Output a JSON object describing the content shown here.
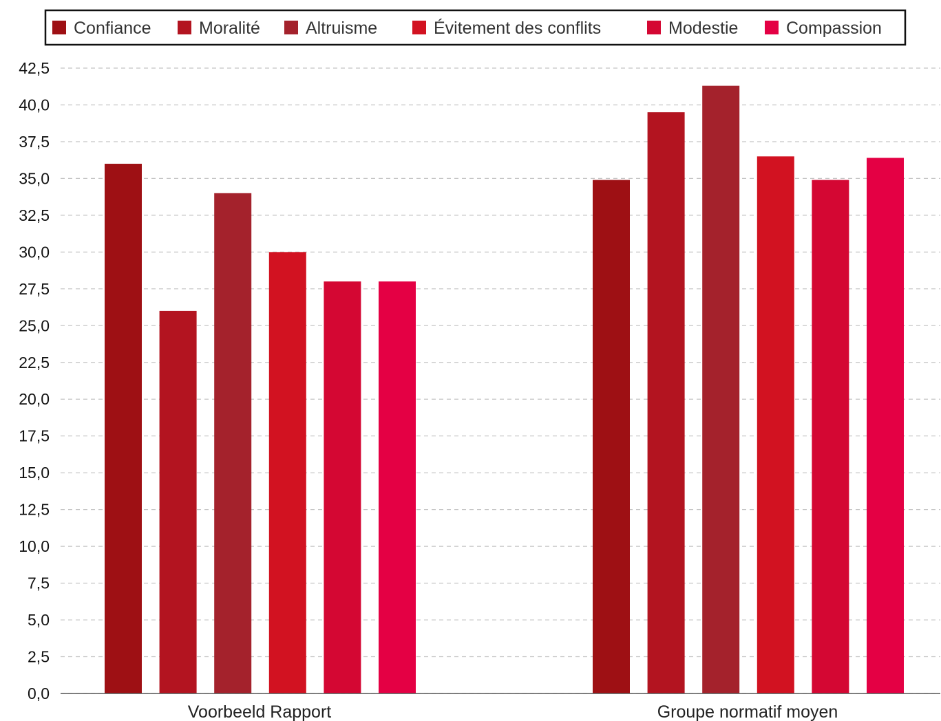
{
  "chart_data": {
    "type": "bar",
    "categories": [
      "Voorbeeld Rapport",
      "Groupe normatif moyen"
    ],
    "series": [
      {
        "name": "Confiance",
        "color": "#9e1014",
        "values": [
          36.0,
          34.9
        ]
      },
      {
        "name": "Moralité",
        "color": "#b31420",
        "values": [
          26.0,
          39.5
        ]
      },
      {
        "name": "Altruisme",
        "color": "#a4222c",
        "values": [
          34.0,
          41.3
        ]
      },
      {
        "name": "Évitement des conflits",
        "color": "#d21221",
        "values": [
          30.0,
          36.5
        ]
      },
      {
        "name": "Modestie",
        "color": "#d40733",
        "values": [
          28.0,
          34.9
        ]
      },
      {
        "name": "Compassion",
        "color": "#e40044",
        "values": [
          28.0,
          36.4
        ]
      }
    ],
    "ylim": [
      0,
      42.5
    ],
    "yticks": [
      "0,0",
      "2,5",
      "5,0",
      "7,5",
      "10,0",
      "12,5",
      "15,0",
      "17,5",
      "20,0",
      "22,5",
      "25,0",
      "27,5",
      "30,0",
      "32,5",
      "35,0",
      "37,5",
      "40,0",
      "42,5"
    ],
    "grid": true,
    "legend_position": "top"
  }
}
